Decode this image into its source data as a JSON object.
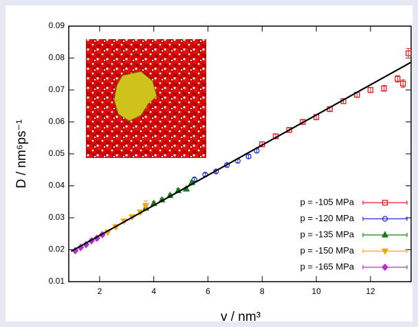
{
  "chart_data": {
    "type": "scatter",
    "x_label": "v / nm³",
    "y_label": "D / nm⁶ps⁻¹",
    "xlim": [
      0.86,
      13.5
    ],
    "ylim": [
      0.01,
      0.09
    ],
    "xticks": [
      2,
      4,
      6,
      8,
      10,
      12
    ],
    "yticks": [
      0.01,
      0.02,
      0.03,
      0.04,
      0.05,
      0.06,
      0.07,
      0.08,
      0.09
    ],
    "legend": "lower right",
    "fit_line": {
      "color": "#000000",
      "x": [
        0.95,
        13.5
      ],
      "y": [
        0.0195,
        0.0787
      ]
    },
    "series": [
      {
        "name": "p = -105 MPa",
        "color": "#e41a1c",
        "marker": "square",
        "filled": false,
        "x": [
          8.0,
          8.5,
          9.0,
          9.5,
          10.0,
          10.5,
          11.0,
          11.5,
          12.0,
          12.5,
          13.0,
          13.2,
          13.4
        ],
        "values": [
          0.053,
          0.0555,
          0.0575,
          0.06,
          0.0615,
          0.064,
          0.0665,
          0.0685,
          0.07,
          0.0705,
          0.0735,
          0.072,
          0.0815
        ],
        "errors": [
          0.0008,
          0.0007,
          0.0007,
          0.0007,
          0.0008,
          0.0007,
          0.0008,
          0.0008,
          0.0008,
          0.0009,
          0.001,
          0.0012,
          0.0015
        ]
      },
      {
        "name": "p = -120 MPa",
        "color": "#1f2fd6",
        "marker": "circle",
        "filled": false,
        "x": [
          5.5,
          5.9,
          6.3,
          6.7,
          7.1,
          7.5,
          7.8
        ],
        "values": [
          0.042,
          0.0435,
          0.0445,
          0.0465,
          0.0478,
          0.0492,
          0.051
        ],
        "errors": [
          0.0005,
          0.0005,
          0.0005,
          0.0006,
          0.0006,
          0.0006,
          0.0007
        ]
      },
      {
        "name": "p = -135 MPa",
        "color": "#1a7a1a",
        "marker": "triangle",
        "filled": true,
        "x": [
          3.7,
          4.0,
          4.3,
          4.6,
          4.9,
          5.2,
          5.4
        ],
        "values": [
          0.033,
          0.0345,
          0.0356,
          0.037,
          0.0385,
          0.039,
          0.041
        ],
        "errors": [
          0.0005,
          0.0005,
          0.0005,
          0.0005,
          0.0006,
          0.0005,
          0.0006
        ]
      },
      {
        "name": "p = -150 MPa",
        "color": "#f2a516",
        "marker": "triangle-down",
        "filled": true,
        "x": [
          2.3,
          2.6,
          2.9,
          3.2,
          3.5,
          3.7
        ],
        "values": [
          0.0255,
          0.0272,
          0.029,
          0.0303,
          0.0318,
          0.0338
        ],
        "errors": [
          0.0005,
          0.0005,
          0.0005,
          0.0005,
          0.0006,
          0.0015
        ]
      },
      {
        "name": "p = -165 MPa",
        "color": "#b52fcf",
        "marker": "diamond",
        "filled": true,
        "x": [
          1.1,
          1.3,
          1.5,
          1.7,
          1.9,
          2.1
        ],
        "values": [
          0.0197,
          0.0207,
          0.0216,
          0.0228,
          0.0236,
          0.0247
        ],
        "errors": [
          0.0004,
          0.0004,
          0.0004,
          0.0005,
          0.0005,
          0.0005
        ]
      }
    ]
  }
}
